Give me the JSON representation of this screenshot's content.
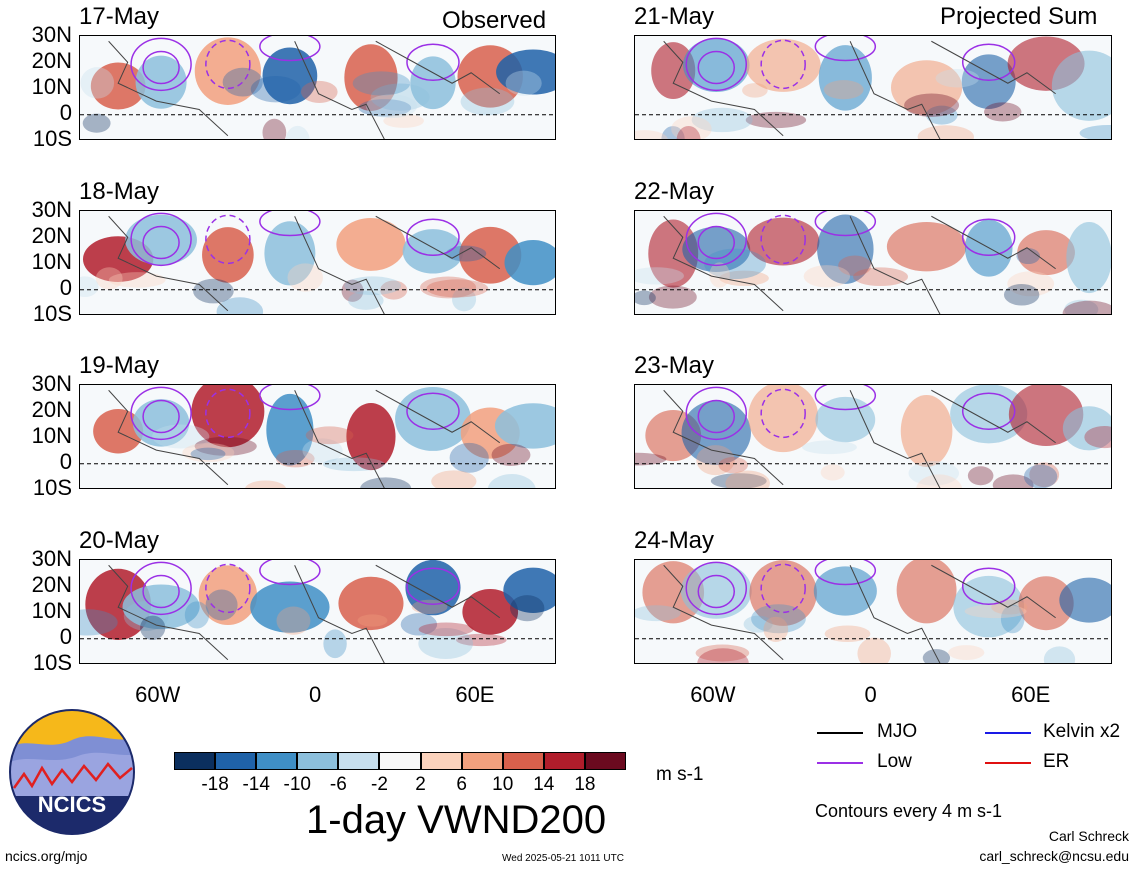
{
  "headers": {
    "observed": "Observed",
    "projected": "Projected Sum"
  },
  "lat_labels": [
    "30N",
    "20N",
    "10N",
    "0",
    "10S"
  ],
  "lon_labels": [
    "60W",
    "0",
    "60E"
  ],
  "panels_observed": [
    {
      "date": "17-May"
    },
    {
      "date": "18-May"
    },
    {
      "date": "19-May"
    },
    {
      "date": "20-May"
    }
  ],
  "panels_projected": [
    {
      "date": "21-May"
    },
    {
      "date": "22-May"
    },
    {
      "date": "23-May"
    },
    {
      "date": "24-May"
    }
  ],
  "colorbar": {
    "ticks": [
      "-18",
      "-14",
      "-10",
      "-6",
      "-2",
      "2",
      "6",
      "10",
      "14",
      "18"
    ],
    "colors": [
      "#0b2f5e",
      "#1f62a8",
      "#3f8fc6",
      "#8cbfdc",
      "#c7dfee",
      "#f7f7f7",
      "#fbd2bc",
      "#f2a07e",
      "#d8604c",
      "#b11d2b",
      "#6b0a1f"
    ],
    "units": "m s-1"
  },
  "title": "1-day VWND200",
  "legend": {
    "items": [
      {
        "label": "MJO",
        "color": "#000000",
        "style": "solid"
      },
      {
        "label": "Kelvin x2",
        "color": "#1a1ae6",
        "style": "solid"
      },
      {
        "label": "Low",
        "color": "#9b30e6",
        "style": "solid"
      },
      {
        "label": "ER",
        "color": "#e01010",
        "style": "solid"
      }
    ],
    "contours_note": "Contours every 4 m s-1"
  },
  "logo": {
    "text": "NCICS"
  },
  "footer": {
    "url": "ncics.org/mjo",
    "timestamp": "Wed 2025-05-21 1011 UTC",
    "author": "Carl Schreck",
    "email": "carl_schreck@ncsu.edu"
  }
}
